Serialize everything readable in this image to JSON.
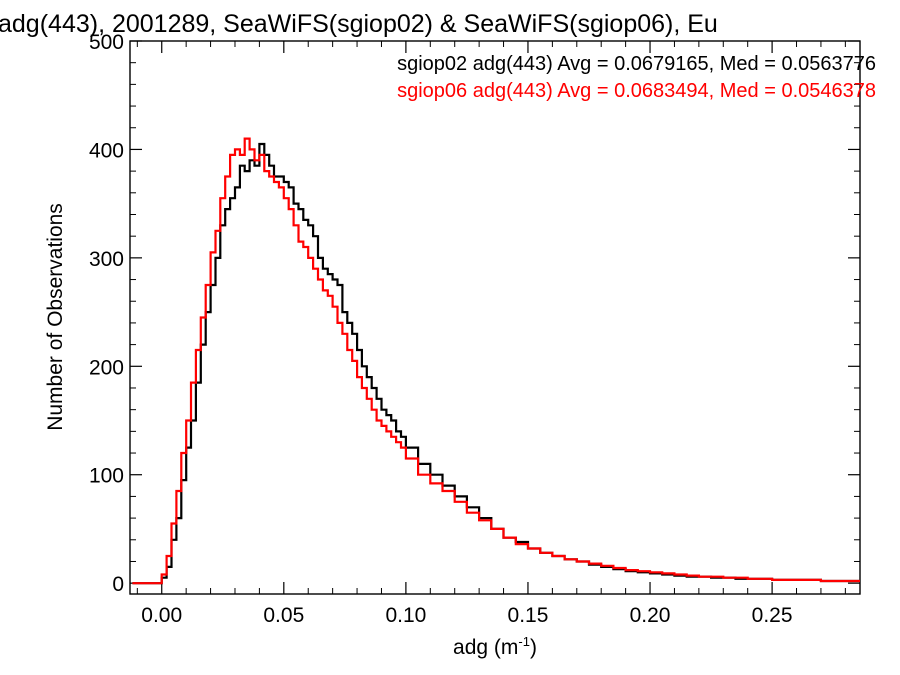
{
  "chart_data": {
    "type": "line",
    "title": "adg(443), 2001289, SeaWiFS(sgiop02) & SeaWiFS(sgiop06), Eu",
    "xlabel": "adg (m",
    "xlabel_sup": "-1",
    "xlabel_close": ")",
    "ylabel": "Number of Observations",
    "xlim": [
      -0.013,
      0.286
    ],
    "ylim": [
      -10,
      500
    ],
    "xticks": [
      0.0,
      0.05,
      0.1,
      0.15,
      0.2,
      0.25
    ],
    "xtick_labels": [
      "0.00",
      "0.05",
      "0.10",
      "0.15",
      "0.20",
      "0.25"
    ],
    "yticks": [
      0,
      100,
      200,
      300,
      400,
      500
    ],
    "ytick_labels": [
      "0",
      "100",
      "200",
      "300",
      "400",
      "500"
    ],
    "legend_position": "top-right",
    "series": [
      {
        "name": "sgiop02",
        "legend": "sgiop02 adg(443) Avg = 0.0679165, Med = 0.0563776",
        "color": "#000000",
        "x": [
          -0.012,
          -0.008,
          -0.004,
          0,
          0.002,
          0.004,
          0.006,
          0.008,
          0.01,
          0.012,
          0.014,
          0.016,
          0.018,
          0.02,
          0.022,
          0.024,
          0.026,
          0.028,
          0.03,
          0.032,
          0.034,
          0.036,
          0.038,
          0.04,
          0.042,
          0.044,
          0.046,
          0.048,
          0.05,
          0.052,
          0.054,
          0.056,
          0.058,
          0.06,
          0.062,
          0.064,
          0.066,
          0.068,
          0.07,
          0.072,
          0.074,
          0.076,
          0.078,
          0.08,
          0.082,
          0.084,
          0.086,
          0.088,
          0.09,
          0.092,
          0.094,
          0.096,
          0.098,
          0.1,
          0.105,
          0.11,
          0.115,
          0.12,
          0.125,
          0.13,
          0.135,
          0.14,
          0.145,
          0.15,
          0.155,
          0.16,
          0.165,
          0.17,
          0.175,
          0.18,
          0.185,
          0.19,
          0.195,
          0.2,
          0.205,
          0.21,
          0.215,
          0.22,
          0.225,
          0.23,
          0.235,
          0.24,
          0.245,
          0.25,
          0.255,
          0.26,
          0.265,
          0.27,
          0.275,
          0.28,
          0.285
        ],
        "y": [
          0,
          0,
          0,
          5,
          15,
          40,
          60,
          95,
          125,
          150,
          185,
          220,
          250,
          275,
          300,
          330,
          345,
          355,
          365,
          385,
          380,
          390,
          385,
          405,
          395,
          385,
          375,
          375,
          370,
          365,
          350,
          345,
          335,
          330,
          320,
          300,
          290,
          285,
          280,
          275,
          250,
          240,
          230,
          215,
          200,
          190,
          180,
          170,
          160,
          155,
          150,
          140,
          135,
          125,
          110,
          100,
          90,
          80,
          70,
          60,
          50,
          42,
          38,
          32,
          28,
          25,
          22,
          20,
          17,
          15,
          13,
          11,
          10,
          9,
          8,
          7,
          6,
          6,
          5,
          5,
          4,
          4,
          4,
          3,
          3,
          3,
          3,
          2,
          2,
          2,
          2
        ]
      },
      {
        "name": "sgiop06",
        "legend": "sgiop06 adg(443) Avg = 0.0683494, Med = 0.0546378",
        "color": "#ff0000",
        "x": [
          -0.012,
          -0.008,
          -0.004,
          0,
          0.002,
          0.004,
          0.006,
          0.008,
          0.01,
          0.012,
          0.014,
          0.016,
          0.018,
          0.02,
          0.022,
          0.024,
          0.026,
          0.028,
          0.03,
          0.032,
          0.034,
          0.036,
          0.038,
          0.04,
          0.042,
          0.044,
          0.046,
          0.048,
          0.05,
          0.052,
          0.054,
          0.056,
          0.058,
          0.06,
          0.062,
          0.064,
          0.066,
          0.068,
          0.07,
          0.072,
          0.074,
          0.076,
          0.078,
          0.08,
          0.082,
          0.084,
          0.086,
          0.088,
          0.09,
          0.092,
          0.094,
          0.096,
          0.098,
          0.1,
          0.105,
          0.11,
          0.115,
          0.12,
          0.125,
          0.13,
          0.135,
          0.14,
          0.145,
          0.15,
          0.155,
          0.16,
          0.165,
          0.17,
          0.175,
          0.18,
          0.185,
          0.19,
          0.195,
          0.2,
          0.205,
          0.21,
          0.215,
          0.22,
          0.225,
          0.23,
          0.235,
          0.24,
          0.245,
          0.25,
          0.255,
          0.26,
          0.265,
          0.27,
          0.275,
          0.28,
          0.285
        ],
        "y": [
          0,
          0,
          0,
          8,
          25,
          55,
          85,
          120,
          150,
          185,
          215,
          245,
          275,
          305,
          325,
          355,
          375,
          395,
          400,
          395,
          410,
          400,
          390,
          395,
          380,
          375,
          370,
          365,
          355,
          345,
          330,
          315,
          310,
          300,
          290,
          280,
          270,
          265,
          255,
          240,
          230,
          215,
          205,
          190,
          180,
          170,
          160,
          150,
          145,
          140,
          135,
          130,
          125,
          115,
          100,
          92,
          85,
          75,
          65,
          58,
          50,
          42,
          36,
          32,
          28,
          25,
          22,
          20,
          18,
          16,
          14,
          12,
          11,
          10,
          9,
          8,
          7,
          6,
          6,
          5,
          5,
          4,
          4,
          3,
          3,
          3,
          3,
          2,
          2,
          2,
          2
        ]
      }
    ]
  }
}
